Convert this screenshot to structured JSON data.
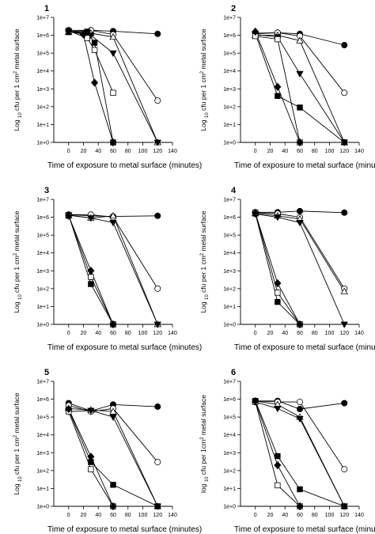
{
  "chart_data": [
    {
      "panel": "1",
      "type": "line",
      "xlabel": "Time of exposure to metal surface (minutes)",
      "ylabel_parts": [
        "Log",
        "10",
        "cfu per 1 cm",
        "2",
        "metal surface"
      ],
      "xlim": [
        -20,
        140
      ],
      "xticks": [
        0,
        20,
        40,
        60,
        80,
        100,
        120,
        140
      ],
      "ylim_log10": [
        0,
        7
      ],
      "yticks": [
        "1e+0",
        "1e+1",
        "1e+2",
        "1e+3",
        "1e+4",
        "1e+5",
        "1e+6",
        "1e+7"
      ],
      "series": [
        {
          "marker": "filled-circle",
          "x": [
            0,
            30,
            60,
            120
          ],
          "y": [
            1900000.0,
            1900000.0,
            1700000.0,
            1200000.0
          ]
        },
        {
          "marker": "open-circle",
          "x": [
            0,
            30,
            60,
            120
          ],
          "y": [
            1600000.0,
            1900000.0,
            1100000.0,
            220
          ]
        },
        {
          "marker": "open-triangle",
          "x": [
            0,
            30,
            60,
            120
          ],
          "y": [
            1500000.0,
            1300000.0,
            800000.0,
            1
          ]
        },
        {
          "marker": "filled-triangle-down",
          "x": [
            0,
            30,
            60,
            120
          ],
          "y": [
            1600000.0,
            1000000.0,
            100000.0,
            1
          ]
        },
        {
          "marker": "filled-square",
          "x": [
            0,
            25,
            35,
            60
          ],
          "y": [
            1500000.0,
            1600000.0,
            380000.0,
            1
          ]
        },
        {
          "marker": "open-square",
          "x": [
            0,
            25,
            35,
            60
          ],
          "y": [
            1800000.0,
            700000.0,
            150000.0,
            600
          ]
        },
        {
          "marker": "filled-diamond",
          "x": [
            0,
            20,
            35,
            60
          ],
          "y": [
            1800000.0,
            1100000.0,
            2200,
            1
          ]
        }
      ]
    },
    {
      "panel": "2",
      "type": "line",
      "xlabel": "Time of exposure to metal surface (minutes)",
      "ylabel_parts": [
        "Log",
        "10",
        "cfu per 1 cm",
        "2",
        "metal surface"
      ],
      "xlim": [
        -20,
        140
      ],
      "xticks": [
        0,
        20,
        40,
        60,
        80,
        100,
        120,
        140
      ],
      "ylim_log10": [
        0,
        7
      ],
      "yticks": [
        "1e+0",
        "1e+1",
        "1e+2",
        "1e+3",
        "1e+4",
        "1e+5",
        "1e+6",
        "1e+7"
      ],
      "series": [
        {
          "marker": "filled-circle",
          "x": [
            0,
            30,
            60,
            120
          ],
          "y": [
            1300000.0,
            1400000.0,
            1200000.0,
            280000.0
          ]
        },
        {
          "marker": "open-circle",
          "x": [
            0,
            30,
            60,
            120
          ],
          "y": [
            1200000.0,
            1400000.0,
            900000.0,
            600
          ]
        },
        {
          "marker": "open-triangle",
          "x": [
            0,
            30,
            60,
            120
          ],
          "y": [
            1000000.0,
            1000000.0,
            500000.0,
            1
          ]
        },
        {
          "marker": "filled-triangle-down",
          "x": [
            0,
            30,
            60,
            120
          ],
          "y": [
            1100000.0,
            800000.0,
            7000,
            1
          ]
        },
        {
          "marker": "filled-square",
          "x": [
            0,
            30,
            60,
            120
          ],
          "y": [
            1200000.0,
            400,
            90,
            1
          ]
        },
        {
          "marker": "open-square",
          "x": [
            0,
            30,
            60
          ],
          "y": [
            900000.0,
            600000.0,
            1
          ]
        },
        {
          "marker": "filled-diamond",
          "x": [
            0,
            30,
            60
          ],
          "y": [
            1600000.0,
            1300,
            1
          ]
        }
      ]
    },
    {
      "panel": "3",
      "type": "line",
      "xlabel": "Time of exposure to metal surface (minutes)",
      "ylabel_parts": [
        "Log",
        "10",
        "cfu per 1 cm",
        "2",
        "metal surface"
      ],
      "xlim": [
        -20,
        140
      ],
      "xticks": [
        0,
        20,
        40,
        60,
        80,
        100,
        120,
        140
      ],
      "ylim_log10": [
        0,
        7
      ],
      "yticks": [
        "1e+0",
        "1e+1",
        "1e+2",
        "1e+3",
        "1e+4",
        "1e+5",
        "1e+6",
        "1e+7"
      ],
      "series": [
        {
          "marker": "filled-circle",
          "x": [
            0,
            30,
            60,
            120
          ],
          "y": [
            1400000.0,
            1200000.0,
            1100000.0,
            1200000.0
          ]
        },
        {
          "marker": "open-circle",
          "x": [
            0,
            30,
            60,
            120
          ],
          "y": [
            1400000.0,
            1400000.0,
            1000000.0,
            100
          ]
        },
        {
          "marker": "open-triangle",
          "x": [
            0,
            30,
            60,
            120
          ],
          "y": [
            1300000.0,
            900000.0,
            1200000.0,
            1
          ]
        },
        {
          "marker": "filled-triangle-down",
          "x": [
            0,
            30,
            60,
            120
          ],
          "y": [
            1300000.0,
            900000.0,
            500000.0,
            1
          ]
        },
        {
          "marker": "filled-square",
          "x": [
            0,
            30,
            60
          ],
          "y": [
            1300000.0,
            180,
            1
          ]
        },
        {
          "marker": "open-square",
          "x": [
            0,
            30,
            60
          ],
          "y": [
            1200000.0,
            450,
            1
          ]
        },
        {
          "marker": "filled-diamond",
          "x": [
            0,
            30,
            60
          ],
          "y": [
            1200000.0,
            1000,
            1
          ]
        }
      ]
    },
    {
      "panel": "4",
      "type": "line",
      "xlabel": "Time of exposure to metal surface (minutes)",
      "ylabel_parts": [
        "Log",
        "10",
        "cfu per 1 cm",
        "2",
        "metal surface"
      ],
      "xlim": [
        -20,
        140
      ],
      "xticks": [
        0,
        20,
        40,
        60,
        80,
        100,
        120,
        140
      ],
      "ylim_log10": [
        0,
        7
      ],
      "yticks": [
        "1e+0",
        "1e+1",
        "1e+2",
        "1e+3",
        "1e+4",
        "1e+5",
        "1e+6",
        "1e+7"
      ],
      "series": [
        {
          "marker": "filled-circle",
          "x": [
            0,
            30,
            60,
            120
          ],
          "y": [
            1900000.0,
            1900000.0,
            2200000.0,
            1800000.0
          ]
        },
        {
          "marker": "open-circle",
          "x": [
            0,
            30,
            60,
            120
          ],
          "y": [
            1800000.0,
            1600000.0,
            1000000.0,
            100
          ]
        },
        {
          "marker": "open-triangle",
          "x": [
            0,
            30,
            60,
            120
          ],
          "y": [
            1700000.0,
            1200000.0,
            800000.0,
            70
          ]
        },
        {
          "marker": "filled-triangle-down",
          "x": [
            0,
            30,
            60,
            120
          ],
          "y": [
            1500000.0,
            1000000.0,
            500000.0,
            1
          ]
        },
        {
          "marker": "filled-square",
          "x": [
            0,
            30,
            60
          ],
          "y": [
            1600000.0,
            18,
            1
          ]
        },
        {
          "marker": "open-square",
          "x": [
            0,
            30,
            60
          ],
          "y": [
            1800000.0,
            60,
            1
          ]
        },
        {
          "marker": "filled-diamond",
          "x": [
            0,
            30,
            60
          ],
          "y": [
            1700000.0,
            200,
            1
          ]
        }
      ]
    },
    {
      "panel": "5",
      "type": "line",
      "xlabel": "Time of exposure to metal surface (minutes)",
      "ylabel_parts": [
        "Log",
        "10",
        "cfu per 1 cm",
        "2",
        "metal surface"
      ],
      "xlim": [
        -20,
        140
      ],
      "xticks": [
        0,
        20,
        40,
        60,
        80,
        100,
        120,
        140
      ],
      "ylim_log10": [
        0,
        7
      ],
      "yticks": [
        "1e+0",
        "1e+1",
        "1e+2",
        "1e+3",
        "1e+4",
        "1e+5",
        "1e+6",
        "1e+7"
      ],
      "series": [
        {
          "marker": "filled-circle",
          "x": [
            0,
            30,
            60,
            120
          ],
          "y": [
            600000.0,
            220000.0,
            500000.0,
            380000.0
          ]
        },
        {
          "marker": "open-circle",
          "x": [
            0,
            30,
            60,
            120
          ],
          "y": [
            450000.0,
            200000.0,
            300000.0,
            300
          ]
        },
        {
          "marker": "open-triangle",
          "x": [
            0,
            30,
            60,
            120
          ],
          "y": [
            300000.0,
            250000.0,
            200000.0,
            1
          ]
        },
        {
          "marker": "filled-triangle-down",
          "x": [
            0,
            30,
            60,
            120
          ],
          "y": [
            200000.0,
            230000.0,
            100000.0,
            1
          ]
        },
        {
          "marker": "filled-square",
          "x": [
            0,
            30,
            60,
            120
          ],
          "y": [
            250000.0,
            300,
            16,
            1
          ]
        },
        {
          "marker": "open-square",
          "x": [
            0,
            30,
            60
          ],
          "y": [
            200000.0,
            120,
            1
          ]
        },
        {
          "marker": "filled-diamond",
          "x": [
            0,
            30,
            60
          ],
          "y": [
            280000.0,
            600,
            1
          ]
        }
      ]
    },
    {
      "panel": "6",
      "type": "line",
      "xlabel": "Time of exposure to metal surface (minutes)",
      "ylabel_parts": [
        "log",
        "10",
        "cfu per 1cm",
        "2",
        "metal surface"
      ],
      "xlim": [
        -20,
        140
      ],
      "xticks": [
        0,
        20,
        40,
        60,
        80,
        100,
        120,
        140
      ],
      "ylim_log10": [
        0,
        7
      ],
      "yticks": [
        "1e+0",
        "1e+1",
        "1e+2",
        "1e+3",
        "1e+4",
        "1e+5",
        "1e+6",
        "1e+7"
      ],
      "series": [
        {
          "marker": "filled-circle",
          "x": [
            0,
            30,
            60,
            120
          ],
          "y": [
            800000.0,
            800000.0,
            280000.0,
            600000.0
          ]
        },
        {
          "marker": "open-circle",
          "x": [
            0,
            30,
            60,
            120
          ],
          "y": [
            800000.0,
            700000.0,
            700000.0,
            120
          ]
        },
        {
          "marker": "open-triangle",
          "x": [
            0,
            30,
            60,
            120
          ],
          "y": [
            800000.0,
            500000.0,
            100000.0,
            1
          ]
        },
        {
          "marker": "filled-triangle-down",
          "x": [
            0,
            30,
            60,
            120
          ],
          "y": [
            700000.0,
            300000.0,
            80000.0,
            1
          ]
        },
        {
          "marker": "filled-square",
          "x": [
            0,
            30,
            60,
            120
          ],
          "y": [
            800000.0,
            650,
            9,
            1
          ]
        },
        {
          "marker": "open-square",
          "x": [
            0,
            30,
            60
          ],
          "y": [
            700000.0,
            15,
            1
          ]
        },
        {
          "marker": "filled-diamond",
          "x": [
            0,
            30,
            60
          ],
          "y": [
            750000.0,
            200,
            1
          ]
        }
      ]
    }
  ]
}
